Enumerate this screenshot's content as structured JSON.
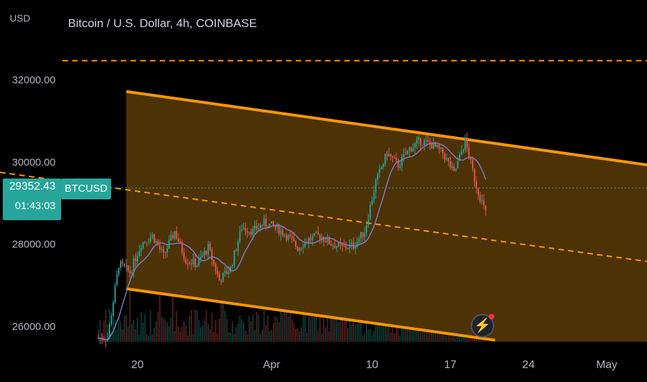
{
  "header": {
    "currency": "USD",
    "title": "Bitcoin / U.S. Dollar, 4h, COINBASE"
  },
  "price_badge": {
    "price": "29352.43",
    "countdown": "01:43:03",
    "symbol": "BTCUSD"
  },
  "alert_button": {
    "icon": "lightning-bolt-icon",
    "glyph": "⚡"
  },
  "colors": {
    "up": "#26a69a",
    "down": "#ef5350",
    "channel": "#ff9800",
    "channel_fill": "#4d3206",
    "ma": "#7e7bbd",
    "last_price_line": "#26a69a"
  },
  "chart_data": {
    "type": "candlestick",
    "title": "Bitcoin / U.S. Dollar, 4h, COINBASE",
    "ylabel": "USD",
    "ylim": [
      25700,
      33600
    ],
    "y_ticks": [
      "32000.00",
      "30000.00",
      "28000.00",
      "26000.00"
    ],
    "x_ticks": [
      "20",
      "Apr",
      "10",
      "17",
      "24",
      "May"
    ],
    "x_domain_days": [
      "Mar 14",
      "May 5"
    ],
    "last_price": 29352.43,
    "horizontal_line": 32450,
    "channel": {
      "upper": [
        {
          "date": "Mar 19",
          "price": 31700
        },
        {
          "date": "May 5",
          "price": 29900
        }
      ],
      "lower": [
        {
          "date": "Mar 19",
          "price": 26900
        },
        {
          "date": "Apr 21",
          "price": 25650
        }
      ],
      "mid": [
        {
          "date": "Mar 19",
          "price": 29300
        },
        {
          "date": "May 5",
          "price": 27550
        }
      ]
    },
    "series": [
      {
        "type": "daily_closes",
        "dates": [
          "Mar 17",
          "Mar 18",
          "Mar 19",
          "Mar 20",
          "Mar 21",
          "Mar 22",
          "Mar 23",
          "Mar 24",
          "Mar 25",
          "Mar 26",
          "Mar 27",
          "Mar 28",
          "Mar 29",
          "Mar 30",
          "Mar 31",
          "Apr 1",
          "Apr 2",
          "Apr 3",
          "Apr 4",
          "Apr 5",
          "Apr 6",
          "Apr 7",
          "Apr 8",
          "Apr 9",
          "Apr 10",
          "Apr 11",
          "Apr 12",
          "Apr 13",
          "Apr 14",
          "Apr 15",
          "Apr 16",
          "Apr 17",
          "Apr 18",
          "Apr 19",
          "Apr 20"
        ],
        "values": [
          25700,
          27500,
          27300,
          28000,
          28200,
          27700,
          28300,
          27600,
          27500,
          27900,
          27100,
          27400,
          28400,
          28300,
          28500,
          28400,
          28200,
          27900,
          28100,
          28200,
          28000,
          27900,
          27950,
          28300,
          29500,
          30200,
          29900,
          30300,
          30500,
          30400,
          30200,
          29700,
          30500,
          29400,
          28600
        ]
      }
    ],
    "volume": "histogram (unlabeled)",
    "moving_average": "single purple line tracking price"
  }
}
